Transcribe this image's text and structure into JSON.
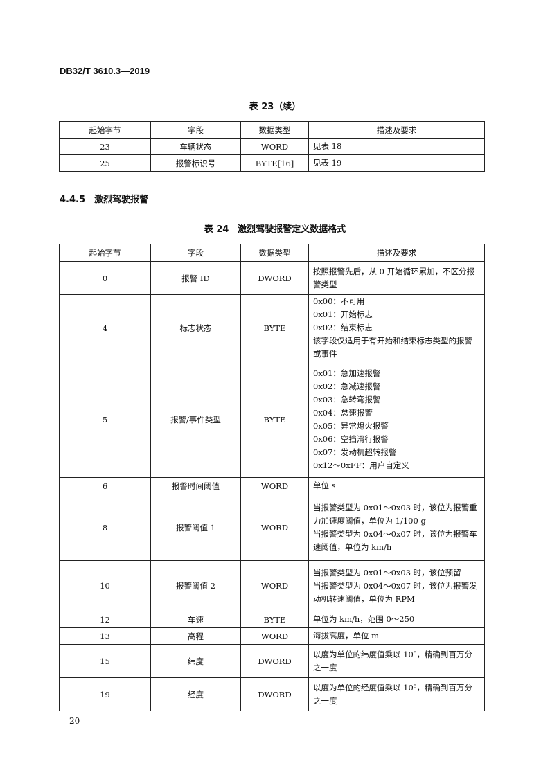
{
  "header": "DB32/T 3610.3—2019",
  "table23": {
    "caption": "表 23（续）",
    "columns": [
      "起始字节",
      "字段",
      "数据类型",
      "描述及要求"
    ],
    "rows": [
      {
        "offset": "23",
        "field": "车辆状态",
        "type": "WORD",
        "desc": [
          "见表 18"
        ]
      },
      {
        "offset": "25",
        "field": "报警标识号",
        "type": "BYTE[16]",
        "desc": [
          "见表 19"
        ]
      }
    ]
  },
  "section": "4.4.5　激烈驾驶报警",
  "table24": {
    "caption": "表 24　激烈驾驶报警定义数据格式",
    "columns": [
      "起始字节",
      "字段",
      "数据类型",
      "描述及要求"
    ],
    "rows": [
      {
        "offset": "0",
        "field": "报警 ID",
        "type": "DWORD",
        "desc": [
          "按照报警先后，从 0 开始循环累加，不区分报警类型"
        ]
      },
      {
        "offset": "4",
        "field": "标志状态",
        "type": "BYTE",
        "desc": [
          "0x00：不可用",
          "0x01：开始标志",
          "0x02：结束标志",
          "该字段仅适用于有开始和结束标志类型的报警或事件"
        ]
      },
      {
        "offset": "5",
        "field": "报警/事件类型",
        "type": "BYTE",
        "desc": [
          "0x01：急加速报警",
          "0x02：急减速报警",
          "0x03：急转弯报警",
          "0x04：怠速报警",
          "0x05：异常熄火报警",
          "0x06：空挡滑行报警",
          "0x07：发动机超转报警",
          "0x12～0xFF：用户自定义"
        ]
      },
      {
        "offset": "6",
        "field": "报警时间阈值",
        "type": "WORD",
        "desc": [
          "单位 s"
        ]
      },
      {
        "offset": "8",
        "field": "报警阈值 1",
        "type": "WORD",
        "desc": [
          "当报警类型为 0x01～0x03 时，该位为报警重力加速度阈值，单位为 1/100 g",
          "当报警类型为 0x04～0x07 时，该位为报警车速阈值，单位为 km/h"
        ]
      },
      {
        "offset": "10",
        "field": "报警阈值 2",
        "type": "WORD",
        "desc": [
          "当报警类型为 0x01～0x03 时，该位预留",
          "当报警类型为 0x04～0x07 时，该位为报警发动机转速阈值，单位为 RPM"
        ]
      },
      {
        "offset": "12",
        "field": "车速",
        "type": "BYTE",
        "desc": [
          "单位为 km/h，范围 0～250"
        ]
      },
      {
        "offset": "13",
        "field": "高程",
        "type": "WORD",
        "desc": [
          "海拔高度，单位 m"
        ]
      },
      {
        "offset": "15",
        "field": "纬度",
        "type": "DWORD",
        "desc": [
          "以度为单位的纬度值乘以 10⁶，精确到百万分之一度"
        ]
      },
      {
        "offset": "19",
        "field": "经度",
        "type": "DWORD",
        "desc": [
          "以度为单位的经度值乘以 10⁶，精确到百万分之一度"
        ]
      }
    ]
  },
  "page_number": "20"
}
